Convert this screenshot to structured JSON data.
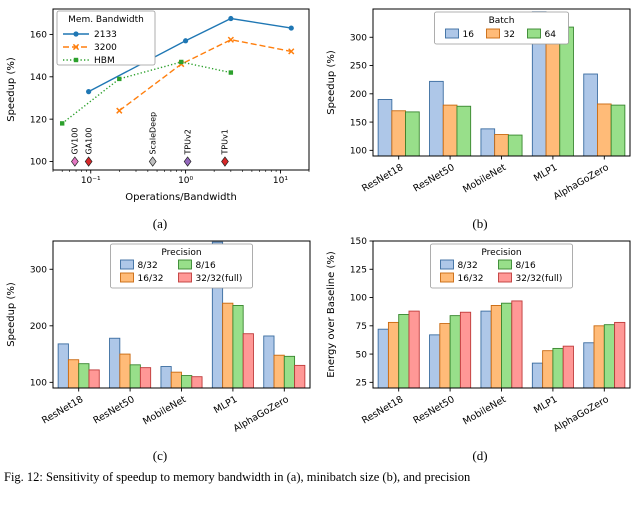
{
  "caption": "Fig. 12: Sensitivity of speedup to memory bandwidth in (a), minibatch size (b), and precision",
  "panels": {
    "a": {
      "sublabel": "(a)"
    },
    "b": {
      "sublabel": "(b)"
    },
    "c": {
      "sublabel": "(c)"
    },
    "d": {
      "sublabel": "(d)"
    }
  },
  "chart_data": [
    {
      "id": "a",
      "type": "line",
      "xlabel": "Operations/Bandwidth",
      "ylabel": "Speedup (%)",
      "xscale": "log",
      "xlim": [
        0.04,
        20
      ],
      "ylim": [
        96,
        172
      ],
      "yticks": [
        100,
        120,
        140,
        160
      ],
      "xticks": [
        0.1,
        1,
        10
      ],
      "xticklabels": [
        "10⁻¹",
        "10⁰",
        "10¹"
      ],
      "legend": {
        "title": "Mem. Bandwidth",
        "position": "upper left"
      },
      "series": [
        {
          "name": "2133",
          "color": "#1f77b4",
          "dash": "solid",
          "marker": "circle",
          "x": [
            0.095,
            1.0,
            3.0,
            13.0
          ],
          "y": [
            133,
            157,
            167.5,
            163
          ]
        },
        {
          "name": "3200",
          "color": "#ff7f0e",
          "dash": "dashed",
          "marker": "x",
          "x": [
            0.2,
            0.9,
            3.0,
            13.0
          ],
          "y": [
            124,
            146,
            157.5,
            152
          ]
        },
        {
          "name": "HBM",
          "color": "#2ca02c",
          "dash": "dotted",
          "marker": "square",
          "x": [
            0.05,
            0.2,
            0.9,
            3.0
          ],
          "y": [
            118,
            139,
            147,
            142
          ]
        }
      ],
      "annotations": [
        {
          "label": "GV100",
          "x": 0.068,
          "y": 100,
          "color": "#e377c2"
        },
        {
          "label": "GA100",
          "x": 0.095,
          "y": 100,
          "color": "#d62728"
        },
        {
          "label": "ScaleDeep",
          "x": 0.45,
          "y": 100,
          "color": "#c0c0c0"
        },
        {
          "label": "TPUv2",
          "x": 1.05,
          "y": 100,
          "color": "#9467bd"
        },
        {
          "label": "TPUv1",
          "x": 2.6,
          "y": 100,
          "color": "#d62728"
        }
      ]
    },
    {
      "id": "b",
      "type": "bar",
      "ylabel": "Speedup (%)",
      "categories": [
        "ResNet18",
        "ResNet50",
        "MobileNet",
        "MLP1",
        "AlphaGoZero"
      ],
      "ylim": [
        90,
        350
      ],
      "yticks": [
        100,
        150,
        200,
        250,
        300
      ],
      "legend": {
        "title": "Batch",
        "ncol": 3
      },
      "series": [
        {
          "name": "16",
          "fill": "#aec7e8",
          "edge": "#3a6ca0",
          "values": [
            190,
            222,
            138,
            345,
            235
          ]
        },
        {
          "name": "32",
          "fill": "#ffbb78",
          "edge": "#c9690f",
          "values": [
            170,
            180,
            128,
            335,
            182
          ]
        },
        {
          "name": "64",
          "fill": "#98df8a",
          "edge": "#37862e",
          "values": [
            168,
            178,
            127,
            318,
            180
          ]
        }
      ]
    },
    {
      "id": "c",
      "type": "bar",
      "ylabel": "Speedup (%)",
      "categories": [
        "ResNet18",
        "ResNet50",
        "MobileNet",
        "MLP1",
        "AlphaGoZero"
      ],
      "ylim": [
        90,
        350
      ],
      "yticks": [
        100,
        200,
        300
      ],
      "legend": {
        "title": "Precision",
        "ncol": 2
      },
      "series": [
        {
          "name": "8/32",
          "fill": "#aec7e8",
          "edge": "#3a6ca0",
          "values": [
            168,
            178,
            128,
            348,
            182
          ]
        },
        {
          "name": "16/32",
          "fill": "#ffbb78",
          "edge": "#c9690f",
          "values": [
            140,
            150,
            118,
            240,
            148
          ]
        },
        {
          "name": "8/16",
          "fill": "#98df8a",
          "edge": "#37862e",
          "values": [
            133,
            131,
            112,
            236,
            146
          ]
        },
        {
          "name": "32/32(full)",
          "fill": "#ff9896",
          "edge": "#bf3a3a",
          "values": [
            122,
            126,
            110,
            186,
            130
          ]
        }
      ]
    },
    {
      "id": "d",
      "type": "bar",
      "ylabel": "Energy over Baseline (%)",
      "categories": [
        "ResNet18",
        "ResNet50",
        "MobileNet",
        "MLP1",
        "AlphaGoZero"
      ],
      "ylim": [
        20,
        150
      ],
      "yticks": [
        25,
        50,
        75,
        100,
        125,
        150
      ],
      "legend": {
        "title": "Precision",
        "ncol": 2
      },
      "series": [
        {
          "name": "8/32",
          "fill": "#aec7e8",
          "edge": "#3a6ca0",
          "values": [
            72,
            67,
            88,
            42,
            60
          ]
        },
        {
          "name": "16/32",
          "fill": "#ffbb78",
          "edge": "#c9690f",
          "values": [
            78,
            77,
            93,
            53,
            75
          ]
        },
        {
          "name": "8/16",
          "fill": "#98df8a",
          "edge": "#37862e",
          "values": [
            85,
            84,
            95,
            55,
            76
          ]
        },
        {
          "name": "32/32(full)",
          "fill": "#ff9896",
          "edge": "#bf3a3a",
          "values": [
            88,
            87,
            97,
            57,
            78
          ]
        }
      ]
    }
  ]
}
